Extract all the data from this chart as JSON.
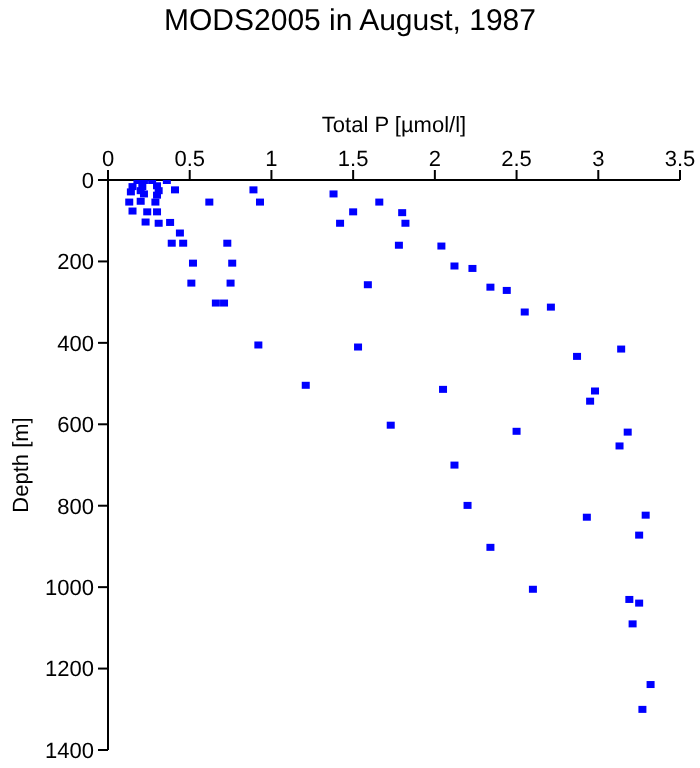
{
  "chart_data": {
    "type": "scatter",
    "title": "MODS2005 in August, 1987",
    "xlabel": "Total P [µmol/l]",
    "ylabel": "Depth [m]",
    "xlim": [
      0,
      3.5
    ],
    "xticks": [
      0,
      0.5,
      1,
      1.5,
      2,
      2.5,
      3,
      3.5
    ],
    "ylim": [
      1400,
      0
    ],
    "yticks": [
      0,
      200,
      400,
      600,
      800,
      1000,
      1200,
      1400
    ],
    "grid": false,
    "legend": false,
    "marker": "square",
    "series": [
      {
        "color": "#0000ff",
        "x": [
          0.18,
          0.22,
          0.27,
          0.36,
          0.15,
          0.21,
          0.3,
          0.14,
          0.2,
          0.31,
          0.22,
          0.3,
          0.41,
          0.89,
          1.38,
          0.13,
          0.2,
          0.29,
          0.62,
          0.93,
          1.66,
          0.15,
          0.24,
          0.3,
          1.5,
          0.23,
          0.31,
          0.38,
          1.42,
          0.44,
          0.39,
          0.46,
          0.73,
          1.78,
          0.52,
          0.76,
          0.51,
          0.75,
          1.59,
          0.66,
          0.71,
          0.92,
          1.53,
          1.21,
          1.73,
          1.8,
          1.82,
          2.04,
          2.12,
          2.23,
          2.34,
          2.44,
          2.55,
          2.71,
          2.87,
          3.14,
          2.05,
          2.98,
          2.95,
          2.5,
          3.18,
          3.13,
          2.12,
          2.2,
          2.93,
          3.29,
          3.25,
          2.34,
          2.6,
          3.19,
          3.25,
          3.21,
          3.32,
          3.27
        ],
        "values": [
          0,
          0,
          0,
          0,
          15,
          15,
          13,
          28,
          25,
          25,
          33,
          36,
          23,
          23,
          33,
          53,
          51,
          53,
          53,
          53,
          53,
          75,
          77,
          77,
          77,
          102,
          105,
          103,
          105,
          129,
          154,
          154,
          154,
          159,
          203,
          203,
          252,
          252,
          256,
          301,
          301,
          404,
          409,
          503,
          601,
          79,
          105,
          161,
          210,
          216,
          262,
          270,
          323,
          311,
          432,
          414,
          513,
          517,
          542,
          616,
          618,
          652,
          699,
          798,
          827,
          822,
          871,
          901,
          1004,
          1029,
          1038,
          1089,
          1238,
          1299
        ]
      }
    ]
  }
}
